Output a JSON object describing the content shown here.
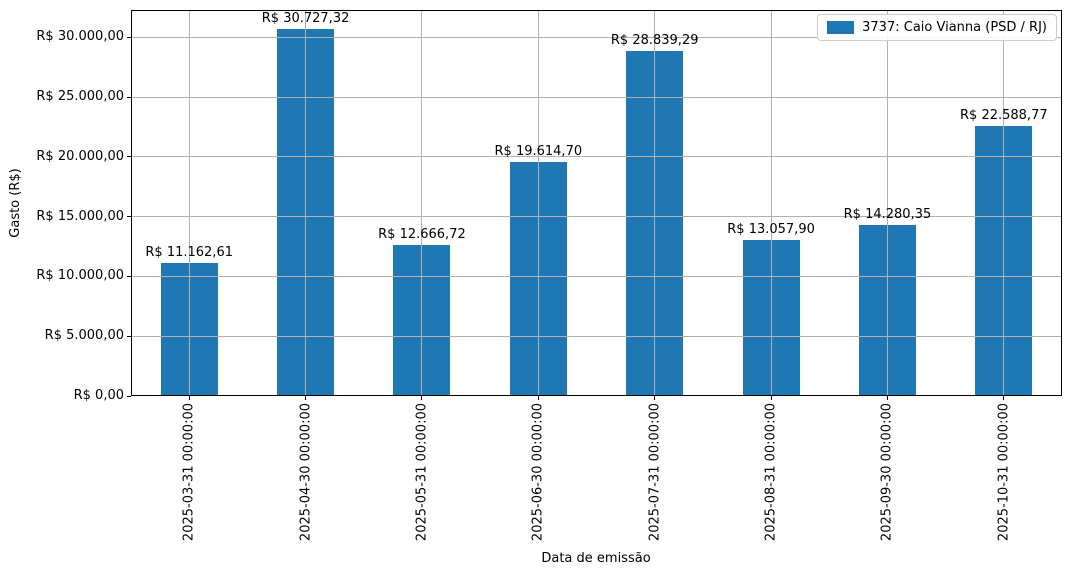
{
  "chart_data": {
    "type": "bar",
    "title": "",
    "xlabel": "Data de emissão",
    "ylabel": "Gasto (R$)",
    "categories": [
      "2025-03-31 00:00:00",
      "2025-04-30 00:00:00",
      "2025-05-31 00:00:00",
      "2025-06-30 00:00:00",
      "2025-07-31 00:00:00",
      "2025-08-31 00:00:00",
      "2025-09-30 00:00:00",
      "2025-10-31 00:00:00"
    ],
    "series": [
      {
        "name": "3737: Caio Vianna (PSD / RJ)",
        "color": "#1f77b4",
        "values": [
          11162.61,
          30727.32,
          12666.72,
          19614.7,
          28839.29,
          13057.9,
          14280.35,
          22588.77
        ]
      }
    ],
    "value_labels": [
      "R$ 11.162,61",
      "R$ 30.727,32",
      "R$ 12.666,72",
      "R$ 19.614,70",
      "R$ 28.839,29",
      "R$ 13.057,90",
      "R$ 14.280,35",
      "R$ 22.588,77"
    ],
    "y_ticks": [
      {
        "value": 0,
        "label": "R$ 0,00"
      },
      {
        "value": 5000,
        "label": "R$ 5.000,00"
      },
      {
        "value": 10000,
        "label": "R$ 10.000,00"
      },
      {
        "value": 15000,
        "label": "R$ 15.000,00"
      },
      {
        "value": 20000,
        "label": "R$ 20.000,00"
      },
      {
        "value": 25000,
        "label": "R$ 25.000,00"
      },
      {
        "value": 30000,
        "label": "R$ 30.000,00"
      }
    ],
    "ylim": [
      0,
      32300
    ],
    "grid": true,
    "grid_color": "#b0b0b0",
    "axis_color": "#000000",
    "background": "#ffffff",
    "bar_width_fraction": 0.49,
    "legend": {
      "position": "upper right",
      "entries": [
        {
          "label": "3737: Caio Vianna (PSD / RJ)",
          "color": "#1f77b4"
        }
      ]
    }
  }
}
